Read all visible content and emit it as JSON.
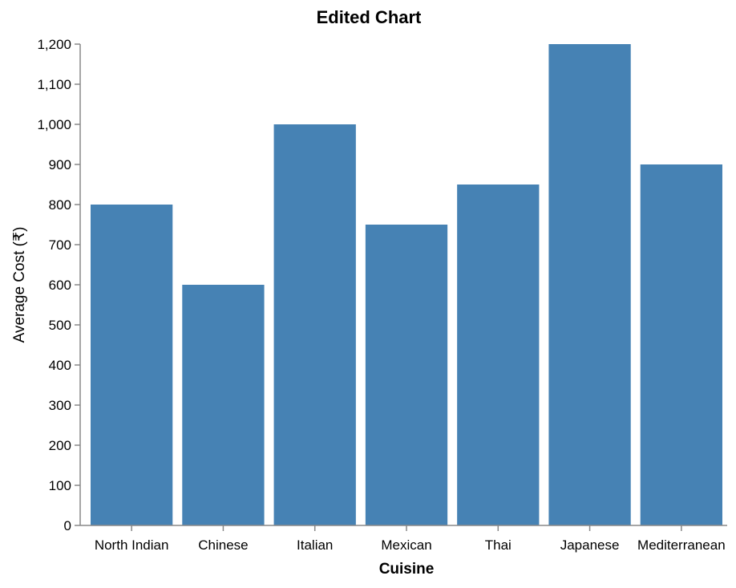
{
  "chart_data": {
    "type": "bar",
    "title": "Edited Chart",
    "xlabel": "Cuisine",
    "ylabel": "Average Cost (₹)",
    "categories": [
      "North Indian",
      "Chinese",
      "Italian",
      "Mexican",
      "Thai",
      "Japanese",
      "Mediterranean"
    ],
    "values": [
      800,
      600,
      1000,
      750,
      850,
      1200,
      900
    ],
    "ylim": [
      0,
      1200
    ],
    "yticks": [
      0,
      100,
      200,
      300,
      400,
      500,
      600,
      700,
      800,
      900,
      1000,
      1100,
      1200
    ],
    "ytick_labels": [
      "0",
      "100",
      "200",
      "300",
      "400",
      "500",
      "600",
      "700",
      "800",
      "900",
      "1,000",
      "1,100",
      "1,200"
    ],
    "bar_color": "#4682b4",
    "grid": false,
    "legend": "none"
  }
}
